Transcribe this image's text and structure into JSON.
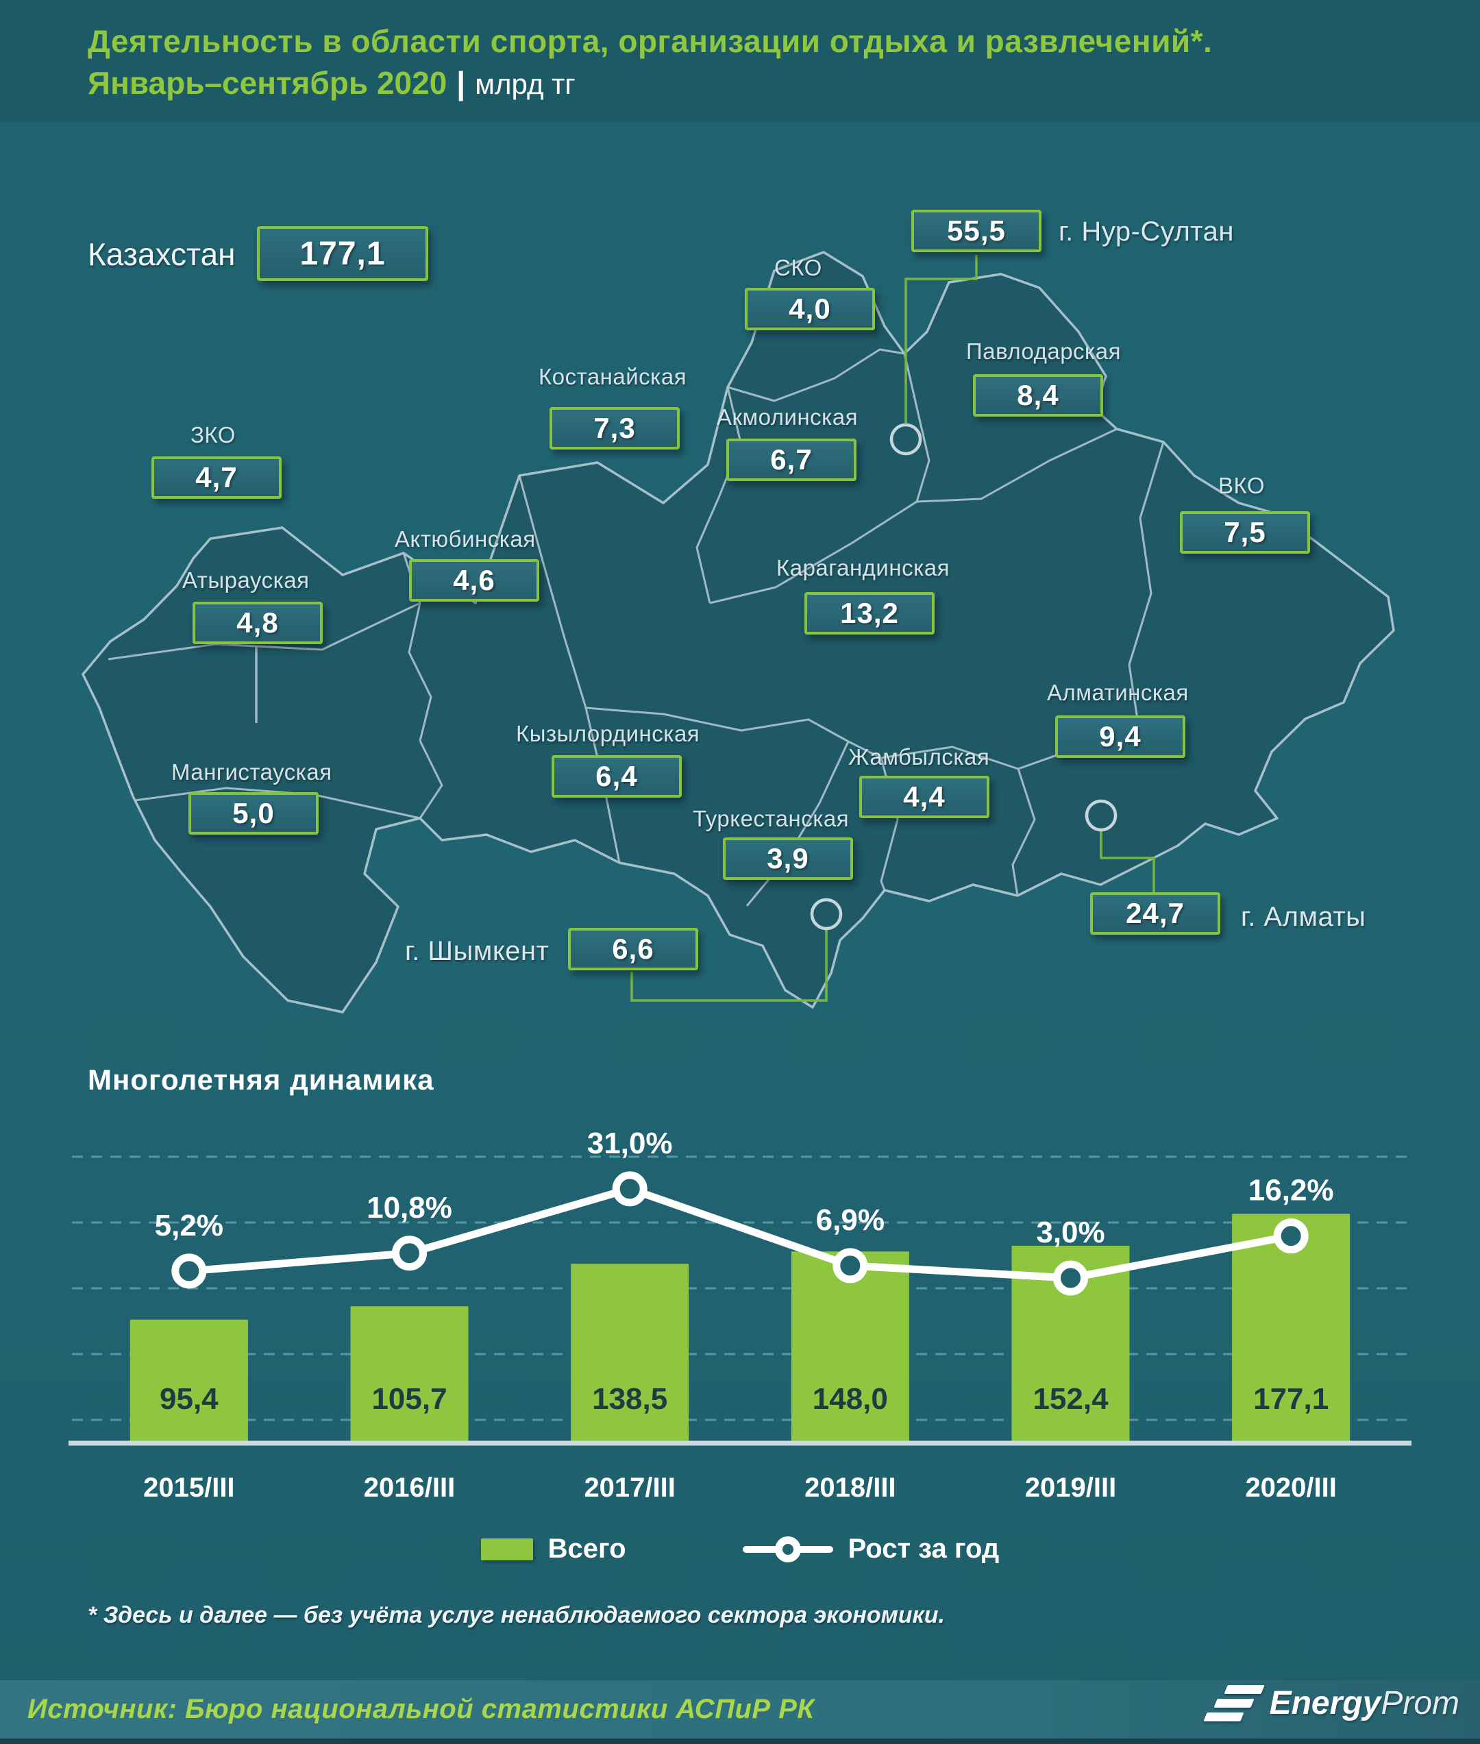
{
  "header": {
    "title_line1": "Деятельность в области спорта, организации отдыха и развлечений*.",
    "period": "Январь–сентябрь 2020",
    "divider": "|",
    "units": "млрд тг"
  },
  "map": {
    "total": {
      "label": "Казахстан",
      "value": "177,1"
    },
    "regions": [
      {
        "id": "sko",
        "label": "СКО",
        "value": "4,0"
      },
      {
        "id": "pavlodar",
        "label": "Павлодарская",
        "value": "8,4"
      },
      {
        "id": "nur-sultan",
        "label": "г. Нур-Султан",
        "value": "55,5"
      },
      {
        "id": "kostanay",
        "label": "Костанайская",
        "value": "7,3"
      },
      {
        "id": "akmola",
        "label": "Акмолинская",
        "value": "6,7"
      },
      {
        "id": "zko",
        "label": "ЗКО",
        "value": "4,7"
      },
      {
        "id": "vko",
        "label": "ВКО",
        "value": "7,5"
      },
      {
        "id": "aktobe",
        "label": "Актюбинская",
        "value": "4,6"
      },
      {
        "id": "atyrau",
        "label": "Атырауская",
        "value": "4,8"
      },
      {
        "id": "karaganda",
        "label": "Карагандинская",
        "value": "13,2"
      },
      {
        "id": "almaty-region",
        "label": "Алматинская",
        "value": "9,4"
      },
      {
        "id": "mangystau",
        "label": "Мангистауская",
        "value": "5,0"
      },
      {
        "id": "kyzylorda",
        "label": "Кызылординская",
        "value": "6,4"
      },
      {
        "id": "zhambyl",
        "label": "Жамбылская",
        "value": "4,4"
      },
      {
        "id": "turkestan",
        "label": "Туркестанская",
        "value": "3,9"
      },
      {
        "id": "shymkent",
        "label": "г. Шымкент",
        "value": "6,6"
      },
      {
        "id": "almaty-city",
        "label": "г. Алматы",
        "value": "24,7"
      }
    ]
  },
  "chart_data": {
    "type": "bar+line",
    "title": "Многолетняя динамика",
    "categories": [
      "2015/III",
      "2016/III",
      "2017/III",
      "2018/III",
      "2019/III",
      "2020/III"
    ],
    "series": [
      {
        "name": "Всего",
        "type": "bar",
        "color": "#8ec63f",
        "values": [
          95.4,
          105.7,
          138.5,
          148.0,
          152.4,
          177.1
        ],
        "labels": [
          "95,4",
          "105,7",
          "138,5",
          "148,0",
          "152,4",
          "177,1"
        ]
      },
      {
        "name": "Рост за год",
        "type": "line",
        "color": "#ffffff",
        "values": [
          5.2,
          10.8,
          31.0,
          6.9,
          3.0,
          16.2
        ],
        "labels": [
          "5,2%",
          "10,8%",
          "31,0%",
          "6,9%",
          "3,0%",
          "16,2%"
        ]
      }
    ],
    "legend": [
      "Всего",
      "Рост за год"
    ],
    "units": "млрд тг",
    "ylim": [
      0,
      200
    ],
    "grid": "dashed-horizontal",
    "legend_position": "bottom"
  },
  "footnote": "* Здесь и далее — без учёта услуг ненаблюдаемого сектора экономики.",
  "source": {
    "text": "Источник: Бюро национальной  статистики АСПиР РК",
    "logo_bold": "Energy",
    "logo_light": "Prom"
  },
  "colors": {
    "background": "#216471",
    "header_background": "#1c5a66",
    "title_green": "#8fc73e",
    "box_border_green": "#86c440",
    "bar_green": "#8ec63f",
    "source_green": "#a9d64b",
    "map_fill": "#1e5965",
    "map_border": "#a6c0c9",
    "growth_line": "#ffffff"
  }
}
